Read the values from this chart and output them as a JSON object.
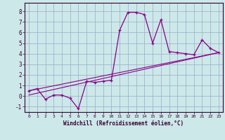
{
  "xlabel": "Windchill (Refroidissement éolien,°C)",
  "background_color": "#cce8e8",
  "line_color": "#880088",
  "grid_color": "#99aacc",
  "hours": [
    0,
    1,
    2,
    3,
    4,
    5,
    6,
    7,
    8,
    9,
    10,
    11,
    12,
    13,
    14,
    15,
    16,
    17,
    18,
    19,
    20,
    21,
    22,
    23
  ],
  "windchill": [
    0.5,
    0.7,
    -0.3,
    0.1,
    0.1,
    -0.2,
    -1.2,
    1.4,
    1.3,
    1.4,
    1.5,
    6.2,
    7.9,
    7.9,
    7.7,
    5.0,
    7.2,
    4.2,
    4.1,
    4.0,
    3.9,
    5.3,
    4.5,
    4.1
  ],
  "line1": [
    [
      0,
      23
    ],
    [
      0.5,
      4.1
    ]
  ],
  "line2": [
    [
      0,
      23
    ],
    [
      0.1,
      4.1
    ]
  ],
  "ylim": [
    -1.5,
    8.8
  ],
  "xlim": [
    -0.5,
    23.5
  ],
  "yticks": [
    -1,
    0,
    1,
    2,
    3,
    4,
    5,
    6,
    7,
    8
  ],
  "xticks": [
    0,
    1,
    2,
    3,
    4,
    5,
    6,
    7,
    8,
    9,
    10,
    11,
    12,
    13,
    14,
    15,
    16,
    17,
    18,
    19,
    20,
    21,
    22,
    23
  ]
}
